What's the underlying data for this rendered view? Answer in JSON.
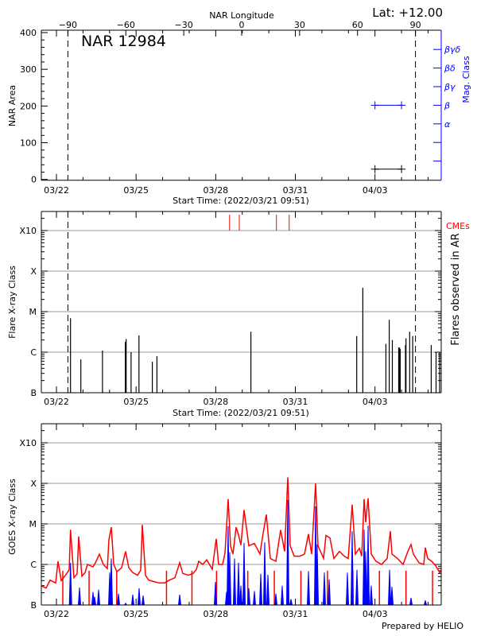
{
  "colors": {
    "axis": "#000000",
    "grid": "#999999",
    "goes_long": "#ff0000",
    "goes_short": "#0000ff",
    "cme": "#ff0000",
    "mag_class": "#0000ff"
  },
  "header": {
    "latitude": "Lat: +12.00",
    "longitude_axis_label": "NAR Longitude",
    "region_title": "NAR 12984"
  },
  "footer": {
    "credit": "Prepared by HELIO"
  },
  "chart_data": [
    {
      "type": "scatter",
      "panel": "top",
      "title": "NAR 12984",
      "ylabel": "NAR Area",
      "y2label": "Mag. Class",
      "xlabel": "Start Time: (2022/03/21 09:51)",
      "x2label": "NAR Longitude",
      "xlim": [
        "2022-03-21T09:51",
        "2022-04-05T12:00"
      ],
      "ylim": [
        0,
        400
      ],
      "yticks": [
        "0",
        "100",
        "200",
        "300",
        "400"
      ],
      "y2ticks": [
        "",
        "",
        "α",
        "β",
        "βγ",
        "βδ",
        "βγδ"
      ],
      "x2ticks": [
        -90,
        -60,
        -30,
        0,
        30,
        60,
        90
      ],
      "xticks": [
        {
          "label": "03/22",
          "time": "2022-03-22T00:00"
        },
        {
          "label": "03/25",
          "time": "2022-03-25T00:00"
        },
        {
          "label": "03/28",
          "time": "2022-03-28T00:00"
        },
        {
          "label": "03/31",
          "time": "2022-03-31T00:00"
        },
        {
          "label": "04/03",
          "time": "2022-04-03T00:00"
        }
      ],
      "limb_longitudes": [
        -90,
        90
      ],
      "area": [
        {
          "time": "2022-04-03T00:00",
          "value": 28
        },
        {
          "time": "2022-04-04T00:00",
          "value": 28
        }
      ],
      "mag_class": [
        {
          "time": "2022-04-03T00:00",
          "value": "β"
        },
        {
          "time": "2022-04-04T00:00",
          "value": "β"
        }
      ]
    },
    {
      "type": "bar",
      "panel": "middle",
      "ylabel": "Flare X-ray Class",
      "y2label": "Flares observed in AR",
      "xlabel": "Start Time: (2022/03/21 09:51)",
      "yscale": "log",
      "yticks": [
        "B",
        "C",
        "M",
        "X",
        "X10"
      ],
      "grid": true,
      "cme_label": "CMEs",
      "cmes": [
        "2022-03-28T12:33",
        "2022-03-28T21:19",
        "2022-03-30T06:53",
        "2022-03-30T18:27"
      ],
      "flares": [
        {
          "time": "2022-03-22T12:43",
          "class": "C6.9"
        },
        {
          "time": "2022-03-22T22:03",
          "class": "B6.6"
        },
        {
          "time": "2022-03-23T17:37",
          "class": "C1.1"
        },
        {
          "time": "2022-03-24T14:15",
          "class": "C1.8"
        },
        {
          "time": "2022-03-24T15:03",
          "class": "C2.1"
        },
        {
          "time": "2022-03-24T19:29",
          "class": "C1.0"
        },
        {
          "time": "2022-03-25T02:37",
          "class": "C2.6"
        },
        {
          "time": "2022-03-25T14:41",
          "class": "B5.8"
        },
        {
          "time": "2022-03-25T18:52",
          "class": "B8.0"
        },
        {
          "time": "2022-03-29T07:49",
          "class": "C3.2"
        },
        {
          "time": "2022-04-02T07:29",
          "class": "C2.5"
        },
        {
          "time": "2022-04-02T13:00",
          "class": "M3.9"
        },
        {
          "time": "2022-04-03T09:52",
          "class": "C1.6"
        },
        {
          "time": "2022-04-03T12:53",
          "class": "C6.3"
        },
        {
          "time": "2022-04-03T15:41",
          "class": "C2.0"
        },
        {
          "time": "2022-04-03T21:26",
          "class": "C1.3"
        },
        {
          "time": "2022-04-03T22:14",
          "class": "C1.3"
        },
        {
          "time": "2022-04-03T22:48",
          "class": "C1.2"
        },
        {
          "time": "2022-04-04T03:33",
          "class": "C1.5"
        },
        {
          "time": "2022-04-04T04:03",
          "class": "C2.2"
        },
        {
          "time": "2022-04-04T07:21",
          "class": "C3.2"
        },
        {
          "time": "2022-04-04T10:05",
          "class": "C2.5"
        },
        {
          "time": "2022-04-05T02:50",
          "class": "C1.5"
        },
        {
          "time": "2022-04-05T07:13",
          "class": "C1.0"
        },
        {
          "time": "2022-04-05T10:28",
          "class": "C1.0"
        }
      ]
    },
    {
      "type": "line",
      "panel": "bottom",
      "ylabel": "GOES X-ray Class",
      "yscale": "log",
      "yticks": [
        "B",
        "C",
        "M",
        "X",
        "X10"
      ],
      "grid": true,
      "series": [
        {
          "color": "#ff0000",
          "points": [
            [
              "2022-03-21T10:07",
              3e-07
            ],
            [
              "2022-03-21T14:40",
              2.6e-07
            ],
            [
              "2022-03-21T18:15",
              4.1e-07
            ],
            [
              "2022-03-21T23:17",
              3.5e-07
            ],
            [
              "2022-03-22T01:26",
              1.2e-06
            ],
            [
              "2022-03-22T04:19",
              4e-07
            ],
            [
              "2022-03-22T08:38",
              5.6e-07
            ],
            [
              "2022-03-22T11:30",
              7.4e-07
            ],
            [
              "2022-03-22T12:43",
              7.2e-06
            ],
            [
              "2022-03-22T15:49",
              4.7e-07
            ],
            [
              "2022-03-22T18:41",
              5.9e-07
            ],
            [
              "2022-03-22T20:08",
              4.9e-06
            ],
            [
              "2022-03-22T23:00",
              5.1e-07
            ],
            [
              "2022-03-23T01:53",
              6.3e-07
            ],
            [
              "2022-03-23T04:02",
              1e-06
            ],
            [
              "2022-03-23T09:04",
              8.7e-07
            ],
            [
              "2022-03-23T11:13",
              1.1e-06
            ],
            [
              "2022-03-23T14:49",
              1.8e-06
            ],
            [
              "2022-03-23T18:24",
              1e-06
            ],
            [
              "2022-03-23T22:00",
              7.9e-07
            ],
            [
              "2022-03-23T23:26",
              4.1e-06
            ],
            [
              "2022-03-24T01:36",
              8.3e-06
            ],
            [
              "2022-03-24T03:45",
              1e-06
            ],
            [
              "2022-03-24T06:38",
              6.6e-07
            ],
            [
              "2022-03-24T10:57",
              8.3e-07
            ],
            [
              "2022-03-24T14:32",
              2.1e-06
            ],
            [
              "2022-03-24T17:25",
              8.3e-07
            ],
            [
              "2022-03-24T21:00",
              6.3e-07
            ],
            [
              "2022-03-25T01:19",
              5.4e-07
            ],
            [
              "2022-03-25T04:11",
              7.2e-07
            ],
            [
              "2022-03-25T05:38",
              9.5e-06
            ],
            [
              "2022-03-25T08:30",
              5.4e-07
            ],
            [
              "2022-03-25T11:23",
              4.1e-07
            ],
            [
              "2022-03-25T15:42",
              3.8e-07
            ],
            [
              "2022-03-25T20:44",
              3.5e-07
            ],
            [
              "2022-03-26T01:46",
              3.5e-07
            ],
            [
              "2022-03-26T06:05",
              4.1e-07
            ],
            [
              "2022-03-26T11:07",
              4.7e-07
            ],
            [
              "2022-03-26T15:25",
              1.1e-06
            ],
            [
              "2022-03-26T18:18",
              6e-07
            ],
            [
              "2022-03-26T23:19",
              5.4e-07
            ],
            [
              "2022-03-27T03:38",
              6e-07
            ],
            [
              "2022-03-27T06:31",
              7.6e-07
            ],
            [
              "2022-03-27T08:40",
              1.2e-06
            ],
            [
              "2022-03-27T12:15",
              1e-06
            ],
            [
              "2022-03-27T15:51",
              1.3e-06
            ],
            [
              "2022-03-27T20:53",
              7.6e-07
            ],
            [
              "2022-03-28T00:28",
              4.3e-06
            ],
            [
              "2022-03-28T02:38",
              1e-06
            ],
            [
              "2022-03-28T06:13",
              1e-06
            ],
            [
              "2022-03-28T08:22",
              1.9e-06
            ],
            [
              "2022-03-28T11:14",
              4.1e-05
            ],
            [
              "2022-03-28T13:24",
              2.8e-06
            ],
            [
              "2022-03-28T15:33",
              1.8e-06
            ],
            [
              "2022-03-28T18:26",
              8.3e-06
            ],
            [
              "2022-03-28T20:35",
              5.4e-06
            ],
            [
              "2022-03-28T22:45",
              3e-06
            ],
            [
              "2022-03-29T01:38",
              2.2e-05
            ],
            [
              "2022-03-29T05:57",
              2.9e-06
            ],
            [
              "2022-03-29T10:59",
              3.3e-06
            ],
            [
              "2022-03-29T16:01",
              1.8e-06
            ],
            [
              "2022-03-29T18:10",
              4.5e-06
            ],
            [
              "2022-03-29T21:46",
              1.7e-05
            ],
            [
              "2022-03-30T01:21",
              1.4e-06
            ],
            [
              "2022-03-30T06:23",
              1.2e-06
            ],
            [
              "2022-03-30T10:42",
              7.1e-06
            ],
            [
              "2022-03-30T14:17",
              2.1e-06
            ],
            [
              "2022-03-30T17:10",
              0.00014
            ],
            [
              "2022-03-30T19:19",
              2.9e-06
            ],
            [
              "2022-03-30T22:55",
              1.6e-06
            ],
            [
              "2022-03-31T03:57",
              1.6e-06
            ],
            [
              "2022-03-31T08:15",
              1.8e-06
            ],
            [
              "2022-03-31T11:51",
              5.6e-06
            ],
            [
              "2022-03-31T14:43",
              1.8e-06
            ],
            [
              "2022-03-31T18:19",
              0.0001
            ],
            [
              "2022-03-31T20:28",
              2.9e-06
            ],
            [
              "2022-04-01T01:30",
              1.4e-06
            ],
            [
              "2022-04-01T03:40",
              5.2e-06
            ],
            [
              "2022-04-01T07:16",
              4.5e-06
            ],
            [
              "2022-04-01T10:51",
              1.4e-06
            ],
            [
              "2022-04-01T15:53",
              2.1e-06
            ],
            [
              "2022-04-01T20:12",
              1.6e-06
            ],
            [
              "2022-04-01T23:48",
              1.4e-06
            ],
            [
              "2022-04-02T03:23",
              3e-05
            ],
            [
              "2022-04-02T06:16",
              1.8e-06
            ],
            [
              "2022-04-02T09:51",
              2.5e-06
            ],
            [
              "2022-04-02T12:00",
              1.6e-06
            ],
            [
              "2022-04-02T14:10",
              4.1e-05
            ],
            [
              "2022-04-02T15:36",
              1.1e-05
            ],
            [
              "2022-04-02T17:46",
              4.3e-05
            ],
            [
              "2022-04-02T20:38",
              1.8e-06
            ],
            [
              "2022-04-03T00:57",
              1.2e-06
            ],
            [
              "2022-04-03T05:59",
              1e-06
            ],
            [
              "2022-04-03T11:00",
              1.4e-06
            ],
            [
              "2022-04-03T13:53",
              6.6e-06
            ],
            [
              "2022-04-03T15:20",
              1.8e-06
            ],
            [
              "2022-04-03T20:21",
              1.4e-06
            ],
            [
              "2022-04-04T01:23",
              1e-06
            ],
            [
              "2022-04-04T05:42",
              2.1e-06
            ],
            [
              "2022-04-04T08:35",
              3.1e-06
            ],
            [
              "2022-04-04T10:44",
              1.8e-06
            ],
            [
              "2022-04-04T15:46",
              1.1e-06
            ],
            [
              "2022-04-04T20:05",
              1e-06
            ],
            [
              "2022-04-04T21:31",
              2.6e-06
            ],
            [
              "2022-04-04T23:40",
              1.4e-06
            ],
            [
              "2022-04-05T03:16",
              1.2e-06
            ],
            [
              "2022-04-05T06:52",
              9.3e-07
            ],
            [
              "2022-04-05T10:28",
              6.3e-07
            ],
            [
              "2022-04-05T11:54",
              7.1e-07
            ]
          ],
          "dropouts": [
            "2022-03-22T05:45",
            "2022-03-23T05:30",
            "2022-03-24T06:30",
            "2022-03-26T03:30",
            "2022-03-27T02:30",
            "2022-03-28T00:45",
            "2022-03-29T05:00",
            "2022-03-30T05:00",
            "2022-03-31T05:00",
            "2022-04-01T05:00",
            "2022-04-02T04:00",
            "2022-04-03T04:00",
            "2022-04-04T04:00",
            "2022-04-05T04:00"
          ]
        },
        {
          "color": "#0000ff",
          "points": [
            [
              "2022-03-22T12:43",
              1.1e-06
            ],
            [
              "2022-03-22T20:51",
              2.7e-07
            ],
            [
              "2022-03-23T09:04",
              2.1e-07
            ],
            [
              "2022-03-23T10:30",
              1.6e-07
            ],
            [
              "2022-03-23T14:06",
              2.4e-07
            ],
            [
              "2022-03-24T00:10",
              6.3e-07
            ],
            [
              "2022-03-24T00:53",
              1.9e-07
            ],
            [
              "2022-03-24T01:36",
              1.4e-06
            ],
            [
              "2022-03-24T08:04",
              1.9e-07
            ],
            [
              "2022-03-24T14:32",
              1.1e-07
            ],
            [
              "2022-03-24T21:00",
              1.8e-07
            ],
            [
              "2022-03-25T02:45",
              2.6e-07
            ],
            [
              "2022-03-25T06:21",
              1.7e-07
            ],
            [
              "2022-03-26T15:25",
              1.8e-07
            ],
            [
              "2022-03-27T23:46",
              3.7e-07
            ],
            [
              "2022-03-28T09:48",
              2.1e-07
            ],
            [
              "2022-03-28T11:14",
              8.9e-06
            ],
            [
              "2022-03-28T12:41",
              2e-06
            ],
            [
              "2022-03-28T17:00",
              1.4e-06
            ],
            [
              "2022-03-28T20:35",
              1.1e-06
            ],
            [
              "2022-03-28T22:45",
              3e-07
            ],
            [
              "2022-03-29T01:38",
              3.4e-06
            ],
            [
              "2022-03-29T05:57",
              2.6e-07
            ],
            [
              "2022-03-29T10:59",
              2.2e-07
            ],
            [
              "2022-03-29T16:44",
              5.9e-07
            ],
            [
              "2022-03-29T20:19",
              3.5e-06
            ],
            [
              "2022-03-29T23:12",
              5.6e-07
            ],
            [
              "2022-03-30T06:23",
              1.9e-07
            ],
            [
              "2022-03-30T12:08",
              3e-07
            ],
            [
              "2022-03-30T17:10",
              3.9e-05
            ],
            [
              "2022-03-30T20:02",
              1.4e-07
            ],
            [
              "2022-03-31T11:51",
              6.9e-07
            ],
            [
              "2022-03-31T18:19",
              2.7e-05
            ],
            [
              "2022-03-31T19:45",
              3.1e-06
            ],
            [
              "2022-04-01T02:13",
              6.3e-07
            ],
            [
              "2022-04-01T06:34",
              4.3e-07
            ],
            [
              "2022-04-01T23:04",
              6.3e-07
            ],
            [
              "2022-04-02T03:23",
              6.6e-06
            ],
            [
              "2022-04-02T07:42",
              7.4e-07
            ],
            [
              "2022-04-02T14:10",
              7.2e-06
            ],
            [
              "2022-04-02T15:36",
              2.1e-06
            ],
            [
              "2022-04-02T17:46",
              9.1e-06
            ],
            [
              "2022-04-02T20:38",
              3e-07
            ],
            [
              "2022-04-03T13:10",
              7.4e-07
            ],
            [
              "2022-04-03T15:20",
              2.8e-07
            ],
            [
              "2022-04-04T08:35",
              1.5e-07
            ],
            [
              "2022-04-04T21:31",
              1.3e-07
            ]
          ]
        }
      ]
    }
  ]
}
